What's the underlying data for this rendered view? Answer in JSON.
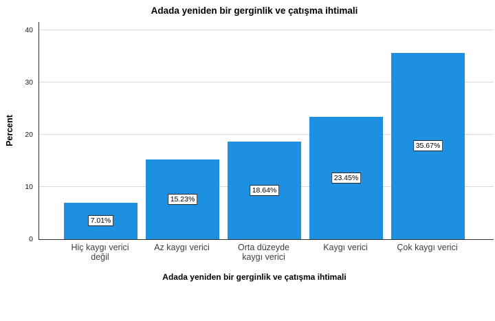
{
  "chart_data": {
    "type": "bar",
    "title": "Adada yeniden bir gerginlik ve çatışma ihtimali",
    "xlabel": "Adada yeniden bir gerginlik ve çatışma ihtimali",
    "ylabel": "Percent",
    "categories": [
      "Hiç kaygı verici değil",
      "Az kaygı verici",
      "Orta düzeyde kaygı verici",
      "Kaygı verici",
      "Çok kaygı verici"
    ],
    "category_lines": [
      [
        "Hiç kaygı verici",
        "değil"
      ],
      [
        "Az kaygı verici"
      ],
      [
        "Orta düzeyde",
        "kaygı verici"
      ],
      [
        "Kaygı verici"
      ],
      [
        "Çok kaygı verici"
      ]
    ],
    "values": [
      7.01,
      15.23,
      18.64,
      23.45,
      35.67
    ],
    "value_labels": [
      "7.01%",
      "15.23%",
      "18.64%",
      "23.45%",
      "35.67%"
    ],
    "yticks": [
      0,
      10,
      20,
      30,
      40
    ],
    "ylim": [
      0,
      41.6
    ],
    "legend": "none",
    "grid": "horizontal",
    "colors": {
      "bar": "#1E90E2",
      "gridline": "#D9D9D9",
      "axis": "#2E2E2E",
      "tick_label": "#1A1A1A",
      "category_label": "#3D3D3D",
      "title": "#000000",
      "background": "#FFFFFF"
    }
  }
}
